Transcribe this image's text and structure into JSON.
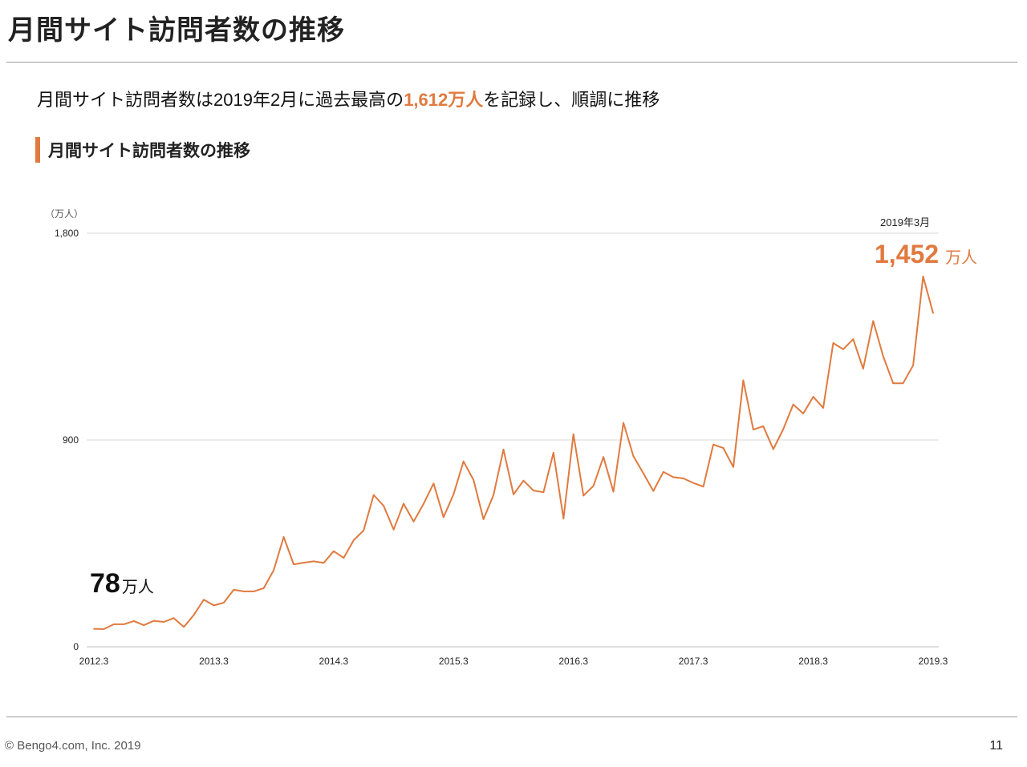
{
  "page": {
    "title": "月間サイト訪問者数の推移",
    "headline": {
      "before": "月間サイト訪問者数は2019年2月に過去最高の",
      "highlight": "1,612万人",
      "after": "を記録し、順調に推移"
    },
    "section_label": "月間サイト訪問者数の推移",
    "copyright": "© Bengo4.com, Inc. 2019",
    "page_number": "11",
    "accent_color": "#e07a3f",
    "line_color": "#e07a3f",
    "grid_color": "#d9d9d9",
    "icons": {
      "section_marker": "orange-vertical-bar"
    }
  },
  "chart_data": {
    "type": "line",
    "y_unit_label": "（万人）",
    "ylim": [
      0,
      1800
    ],
    "yticks": [
      {
        "value": 0,
        "label": "0"
      },
      {
        "value": 900,
        "label": "900"
      },
      {
        "value": 1800,
        "label": "1,800"
      }
    ],
    "xticks": [
      "2012.3",
      "2013.3",
      "2014.3",
      "2015.3",
      "2016.3",
      "2017.3",
      "2018.3",
      "2019.3"
    ],
    "grid": true,
    "start_annotation": {
      "value": "78",
      "unit": "万人"
    },
    "end_annotation": {
      "date": "2019年3月",
      "value": "1,452",
      "unit": "万人"
    },
    "series": [
      {
        "values": [
          78,
          77,
          98,
          98,
          112,
          94,
          113,
          108,
          125,
          86,
          138,
          205,
          180,
          192,
          248,
          241,
          241,
          255,
          333,
          478,
          359,
          366,
          372,
          365,
          416,
          387,
          464,
          506,
          661,
          614,
          510,
          623,
          545,
          622,
          711,
          564,
          664,
          807,
          726,
          555,
          661,
          859,
          663,
          723,
          680,
          673,
          845,
          558,
          925,
          658,
          700,
          826,
          675,
          975,
          830,
          755,
          678,
          761,
          738,
          733,
          713,
          697,
          880,
          865,
          782,
          1160,
          945,
          960,
          860,
          947,
          1055,
          1015,
          1088,
          1040,
          1322,
          1295,
          1339,
          1210,
          1418,
          1265,
          1147,
          1147,
          1225,
          1612,
          1452
        ]
      }
    ]
  }
}
